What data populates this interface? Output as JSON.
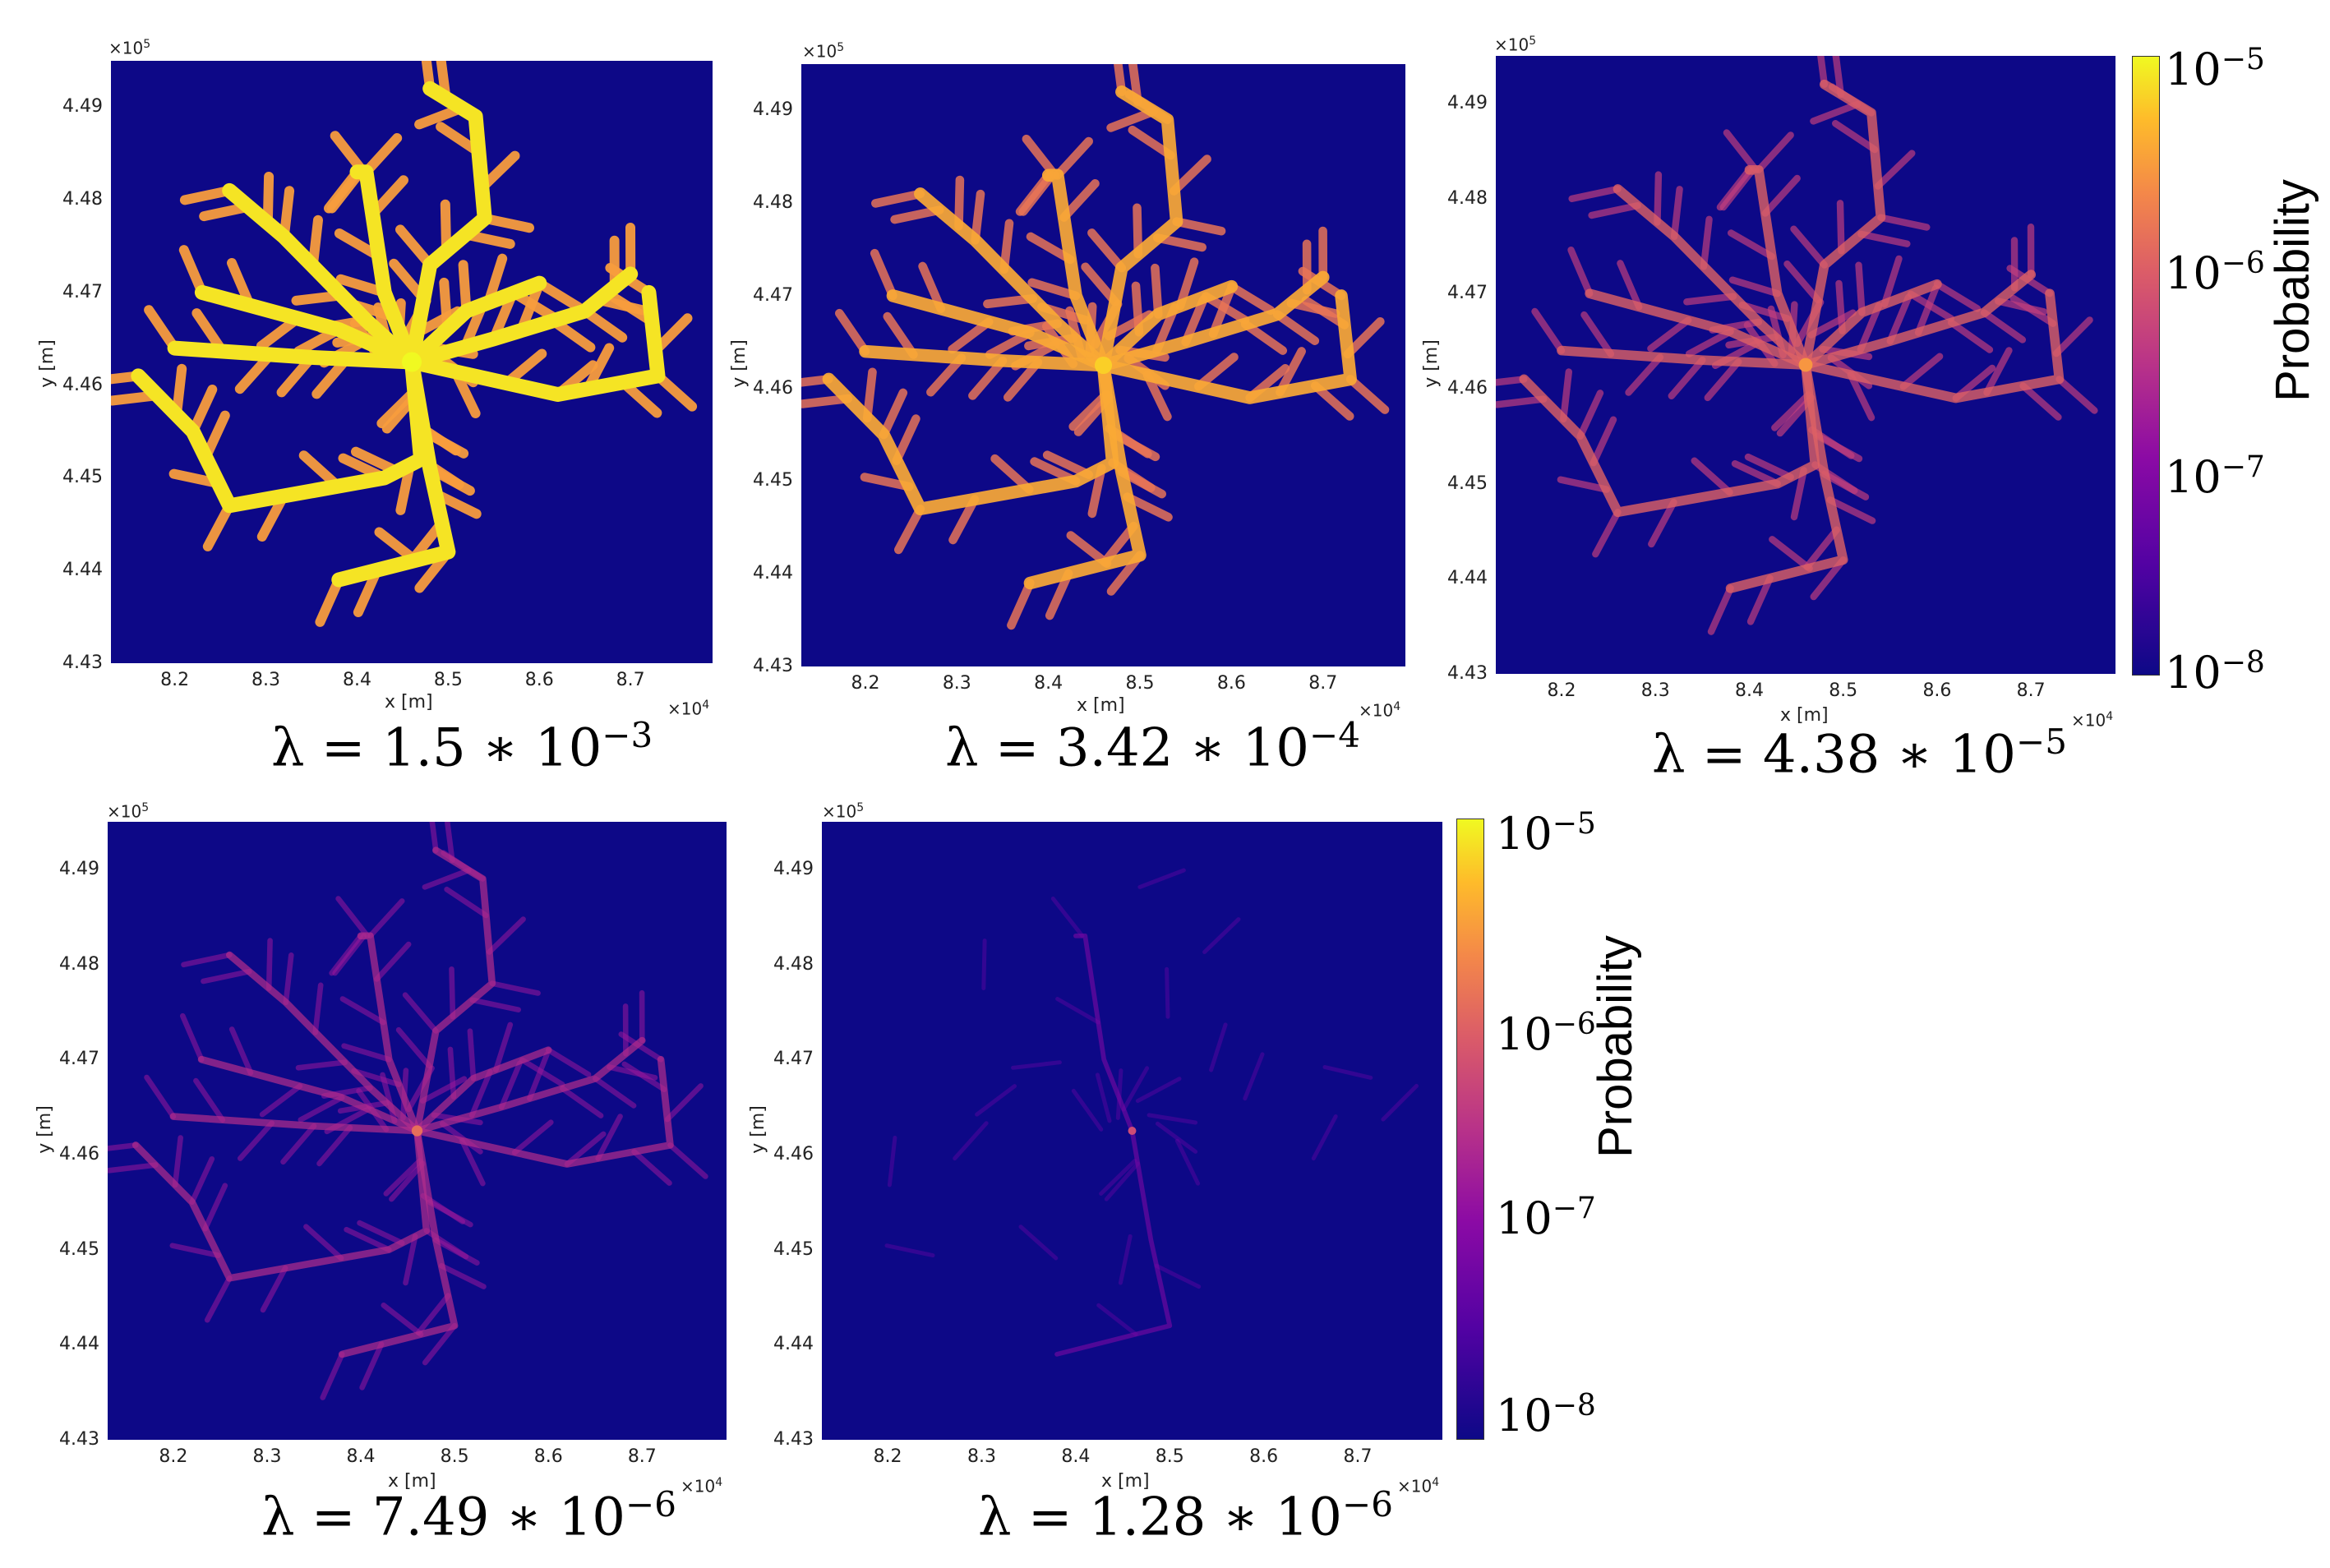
{
  "chart_data": [
    {
      "type": "heatmap",
      "caption": {
        "prefix": "λ = 1.5 ∗ 10",
        "exp": "−3"
      },
      "lambda": "1.5*10^-3",
      "intensity": 1.0,
      "xlabel": "x [m]",
      "ylabel": "y [m]",
      "x_multiplier": "×10",
      "x_multiplier_exp": "4",
      "y_multiplier": "×10",
      "y_multiplier_exp": "5",
      "xticks": [
        "8.2",
        "8.3",
        "8.4",
        "8.5",
        "8.6",
        "8.7"
      ],
      "yticks": [
        "4.49",
        "4.48",
        "4.47",
        "4.46",
        "4.45",
        "4.44",
        "4.43"
      ],
      "xlim": [
        81300,
        87900
      ],
      "ylim": [
        443000,
        449500
      ]
    },
    {
      "type": "heatmap",
      "caption": {
        "prefix": "λ = 3.42 ∗ 10",
        "exp": "−4"
      },
      "lambda": "3.42*10^-4",
      "intensity": 0.82,
      "xlabel": "x [m]",
      "ylabel": "y [m]",
      "x_multiplier": "×10",
      "x_multiplier_exp": "4",
      "y_multiplier": "×10",
      "y_multiplier_exp": "5",
      "xticks": [
        "8.2",
        "8.3",
        "8.4",
        "8.5",
        "8.6",
        "8.7"
      ],
      "yticks": [
        "4.49",
        "4.48",
        "4.47",
        "4.46",
        "4.45",
        "4.44",
        "4.43"
      ],
      "xlim": [
        81300,
        87900
      ],
      "ylim": [
        443000,
        449500
      ]
    },
    {
      "type": "heatmap",
      "caption": {
        "prefix": "λ = 4.38 ∗ 10",
        "exp": "−5"
      },
      "lambda": "4.38*10^-5",
      "intensity": 0.55,
      "xlabel": "x [m]",
      "ylabel": "y [m]",
      "x_multiplier": "×10",
      "x_multiplier_exp": "4",
      "y_multiplier": "×10",
      "y_multiplier_exp": "5",
      "xticks": [
        "8.2",
        "8.3",
        "8.4",
        "8.5",
        "8.6",
        "8.7"
      ],
      "yticks": [
        "4.49",
        "4.48",
        "4.47",
        "4.46",
        "4.45",
        "4.44",
        "4.43"
      ],
      "xlim": [
        81300,
        87900
      ],
      "ylim": [
        443000,
        449500
      ]
    },
    {
      "type": "heatmap",
      "caption": {
        "prefix": "λ = 7.49 ∗ 10",
        "exp": "−6"
      },
      "lambda": "7.49*10^-6",
      "intensity": 0.33,
      "xlabel": "x [m]",
      "ylabel": "y [m]",
      "x_multiplier": "×10",
      "x_multiplier_exp": "4",
      "y_multiplier": "×10",
      "y_multiplier_exp": "5",
      "xticks": [
        "8.2",
        "8.3",
        "8.4",
        "8.5",
        "8.6",
        "8.7"
      ],
      "yticks": [
        "4.49",
        "4.48",
        "4.47",
        "4.46",
        "4.45",
        "4.44",
        "4.43"
      ],
      "xlim": [
        81300,
        87900
      ],
      "ylim": [
        443000,
        449500
      ]
    },
    {
      "type": "heatmap",
      "caption": {
        "prefix": "λ = 1.28 ∗ 10",
        "exp": "−6"
      },
      "lambda": "1.28*10^-6",
      "intensity": 0.12,
      "xlabel": "x [m]",
      "ylabel": "y [m]",
      "x_multiplier": "×10",
      "x_multiplier_exp": "4",
      "y_multiplier": "×10",
      "y_multiplier_exp": "5",
      "xticks": [
        "8.2",
        "8.3",
        "8.4",
        "8.5",
        "8.6",
        "8.7"
      ],
      "yticks": [
        "4.49",
        "4.48",
        "4.47",
        "4.46",
        "4.45",
        "4.44",
        "4.43"
      ],
      "xlim": [
        81300,
        87900
      ],
      "ylim": [
        443000,
        449500
      ]
    }
  ],
  "colorbar": {
    "label": "Probability",
    "scale": "log",
    "range": [
      1e-08,
      1e-05
    ],
    "ticks": [
      {
        "base": "10",
        "exp": "−5"
      },
      {
        "base": "10",
        "exp": "−6"
      },
      {
        "base": "10",
        "exp": "−7"
      },
      {
        "base": "10",
        "exp": "−8"
      }
    ],
    "colormap": "plasma",
    "low_color": "#0d0887",
    "high_color": "#f0f921"
  }
}
